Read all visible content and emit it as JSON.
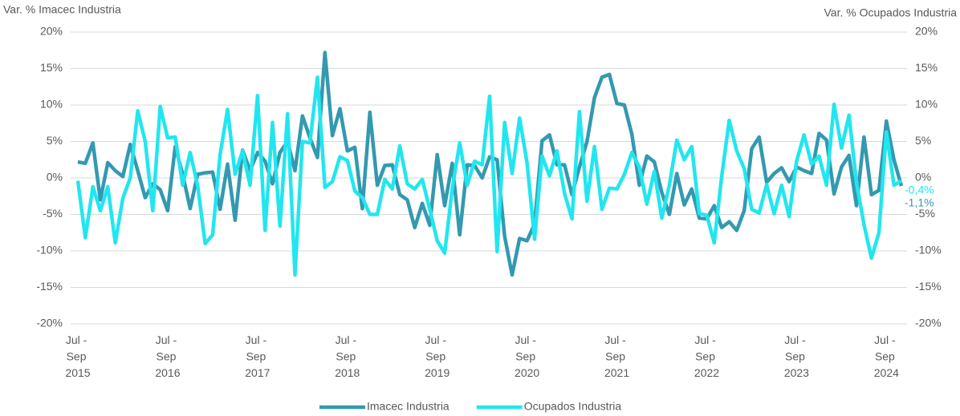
{
  "chart_data": {
    "type": "line",
    "y_label": "Var. % Imacec Industria",
    "y2_label": "Var. % Ocupados Industria",
    "categories": [
      "Jul - Sep 2015",
      null,
      null,
      null,
      null,
      null,
      null,
      null,
      null,
      null,
      null,
      null,
      "Jul - Sep 2016",
      null,
      null,
      null,
      null,
      null,
      null,
      null,
      null,
      null,
      null,
      null,
      "Jul - Sep 2017",
      null,
      null,
      null,
      null,
      null,
      null,
      null,
      null,
      null,
      null,
      null,
      "Jul - Sep 2018",
      null,
      null,
      null,
      null,
      null,
      null,
      null,
      null,
      null,
      null,
      null,
      "Jul - Sep 2019",
      null,
      null,
      null,
      null,
      null,
      null,
      null,
      null,
      null,
      null,
      null,
      "Jul - Sep 2020",
      null,
      null,
      null,
      null,
      null,
      null,
      null,
      null,
      null,
      null,
      null,
      "Jul - Sep 2021",
      null,
      null,
      null,
      null,
      null,
      null,
      null,
      null,
      null,
      null,
      null,
      "Jul - Sep 2022",
      null,
      null,
      null,
      null,
      null,
      null,
      null,
      null,
      null,
      null,
      null,
      "Jul - Sep 2023",
      null,
      null,
      null,
      null,
      null,
      null,
      null,
      null,
      null,
      null,
      null,
      "Jul - Sep 2024",
      null,
      null
    ],
    "series": [
      {
        "name": "Imacec Industria",
        "color": "#3399b0",
        "axis": "y",
        "values": [
          2.2,
          2.0,
          4.8,
          -3.0,
          2.1,
          1.0,
          0.2,
          4.6,
          1.0,
          -2.7,
          -0.8,
          -1.6,
          -4.5,
          4.3,
          0.5,
          -4.2,
          0.5,
          0.7,
          0.8,
          -4.3,
          1.9,
          -5.8,
          3.8,
          1.0,
          3.5,
          2.3,
          -0.8,
          3.5,
          5.0,
          1.0,
          8.5,
          5.5,
          2.8,
          17.2,
          5.8,
          9.5,
          3.7,
          4.2,
          -4.2,
          9.0,
          -1.0,
          1.7,
          1.8,
          -2.3,
          -3.0,
          -6.8,
          -3.5,
          -6.5,
          3.2,
          -3.8,
          2.0,
          -7.8,
          1.8,
          1.7,
          0.0,
          2.9,
          2.5,
          -8.0,
          -13.3,
          -8.3,
          -8.6,
          -6.3,
          5.1,
          5.9,
          1.8,
          1.8,
          -2.3,
          1.5,
          5.0,
          11.0,
          13.8,
          14.2,
          10.2,
          10.0,
          6.0,
          -1.0,
          3.0,
          2.2,
          -2.0,
          -5.0,
          0.6,
          -3.7,
          -1.5,
          -5.5,
          -5.6,
          -3.8,
          -6.8,
          -6.0,
          -7.2,
          -4.5,
          4.0,
          5.6,
          -0.6,
          0.6,
          1.4,
          -0.5,
          1.5,
          1.0,
          0.6,
          6.1,
          5.2,
          -2.2,
          1.5,
          3.1,
          -3.8,
          5.6,
          -2.3,
          -1.7,
          7.8,
          2.5,
          -1.1
        ],
        "value_labels": [
          null,
          null,
          null,
          null,
          null,
          null,
          null,
          null,
          null,
          null,
          null,
          null,
          null,
          null,
          null,
          null,
          null,
          null,
          null,
          null,
          null,
          null,
          null,
          null,
          null,
          null,
          null,
          null,
          null,
          null,
          null,
          null,
          null,
          null,
          null,
          null,
          null,
          null,
          null,
          null,
          null,
          null,
          null,
          null,
          null,
          null,
          null,
          null,
          null,
          null,
          null,
          null,
          null,
          null,
          null,
          null,
          null,
          null,
          null,
          null,
          null,
          null,
          null,
          null,
          null,
          null,
          null,
          null,
          null,
          null,
          null,
          null,
          null,
          null,
          null,
          null,
          null,
          null,
          null,
          null,
          null,
          null,
          null,
          null,
          null,
          null,
          null,
          null,
          null,
          null,
          null,
          null,
          null,
          null,
          null,
          null,
          null,
          null,
          null,
          null,
          null,
          null,
          null,
          null,
          null,
          null,
          null,
          null,
          null,
          null,
          "-1,1%"
        ]
      },
      {
        "name": "Ocupados Industria",
        "color": "#22e6ef",
        "axis": "y2",
        "values": [
          -0.4,
          -8.2,
          -1.2,
          -4.5,
          -1.2,
          -8.9,
          -2.8,
          0.0,
          9.2,
          5.0,
          -4.5,
          9.8,
          5.5,
          5.6,
          -1.0,
          3.5,
          -1.0,
          -9.0,
          -7.8,
          3.2,
          9.4,
          0.5,
          3.7,
          -1.0,
          11.3,
          -7.2,
          7.6,
          -6.6,
          8.8,
          -13.3,
          5.0,
          4.8,
          13.8,
          -1.3,
          -0.5,
          2.9,
          2.4,
          -1.8,
          -2.7,
          -5.0,
          -5.0,
          -0.2,
          -1.5,
          4.4,
          -0.8,
          -1.5,
          -0.2,
          -4.3,
          -8.6,
          -10.3,
          -1.5,
          4.8,
          -1.0,
          2.3,
          1.8,
          11.2,
          -10.1,
          7.6,
          0.6,
          8.2,
          2.1,
          -8.4,
          3.0,
          0.3,
          3.7,
          -2.1,
          -5.6,
          9.1,
          -3.2,
          4.3,
          -4.3,
          -1.4,
          -1.5,
          0.5,
          3.5,
          1.5,
          -3.6,
          0.9,
          -5.5,
          -1.0,
          5.2,
          2.5,
          4.3,
          -4.9,
          -5.1,
          -8.9,
          0.2,
          7.9,
          3.7,
          1.3,
          -4.3,
          -4.8,
          -0.9,
          -4.9,
          -1.0,
          -5.3,
          2.3,
          5.9,
          1.9,
          3.0,
          -1.0,
          10.1,
          4.1,
          8.6,
          -0.6,
          -6.4,
          -11.0,
          -7.5,
          6.3,
          -1.0,
          -0.4
        ],
        "value_labels": [
          null,
          null,
          null,
          null,
          null,
          null,
          null,
          null,
          null,
          null,
          null,
          null,
          null,
          null,
          null,
          null,
          null,
          null,
          null,
          null,
          null,
          null,
          null,
          null,
          null,
          null,
          null,
          null,
          null,
          null,
          null,
          null,
          null,
          null,
          null,
          null,
          null,
          null,
          null,
          null,
          null,
          null,
          null,
          null,
          null,
          null,
          null,
          null,
          null,
          null,
          null,
          null,
          null,
          null,
          null,
          null,
          null,
          null,
          null,
          null,
          null,
          null,
          null,
          null,
          null,
          null,
          null,
          null,
          null,
          null,
          null,
          null,
          null,
          null,
          null,
          null,
          null,
          null,
          null,
          null,
          null,
          null,
          null,
          null,
          null,
          null,
          null,
          null,
          null,
          null,
          null,
          null,
          null,
          null,
          null,
          null,
          null,
          null,
          null,
          null,
          null,
          null,
          null,
          null,
          null,
          null,
          null,
          null,
          null,
          null,
          "-0,4%"
        ]
      }
    ],
    "ylim": [
      -20,
      20
    ],
    "yticks": [
      {
        "value": -20,
        "label": "-20%"
      },
      {
        "value": -15,
        "label": "-15%"
      },
      {
        "value": -10,
        "label": "-10%"
      },
      {
        "value": -5,
        "label": "-5%"
      },
      {
        "value": 0,
        "label": "0%"
      },
      {
        "value": 5,
        "label": "5%"
      },
      {
        "value": 10,
        "label": "10%"
      },
      {
        "value": 15,
        "label": "15%"
      },
      {
        "value": 20,
        "label": "20%"
      }
    ],
    "y2lim": [
      -20,
      20
    ],
    "y2ticks": [
      {
        "value": -20,
        "label": "-20%"
      },
      {
        "value": -15,
        "label": "-15%"
      },
      {
        "value": -10,
        "label": "-10%"
      },
      {
        "value": -5,
        "label": "-5%"
      },
      {
        "value": 0,
        "label": "0%"
      },
      {
        "value": 5,
        "label": "5%"
      },
      {
        "value": 10,
        "label": "10%"
      },
      {
        "value": 15,
        "label": "15%"
      },
      {
        "value": 20,
        "label": "20%"
      }
    ],
    "grid": true,
    "legend": "bottom"
  }
}
